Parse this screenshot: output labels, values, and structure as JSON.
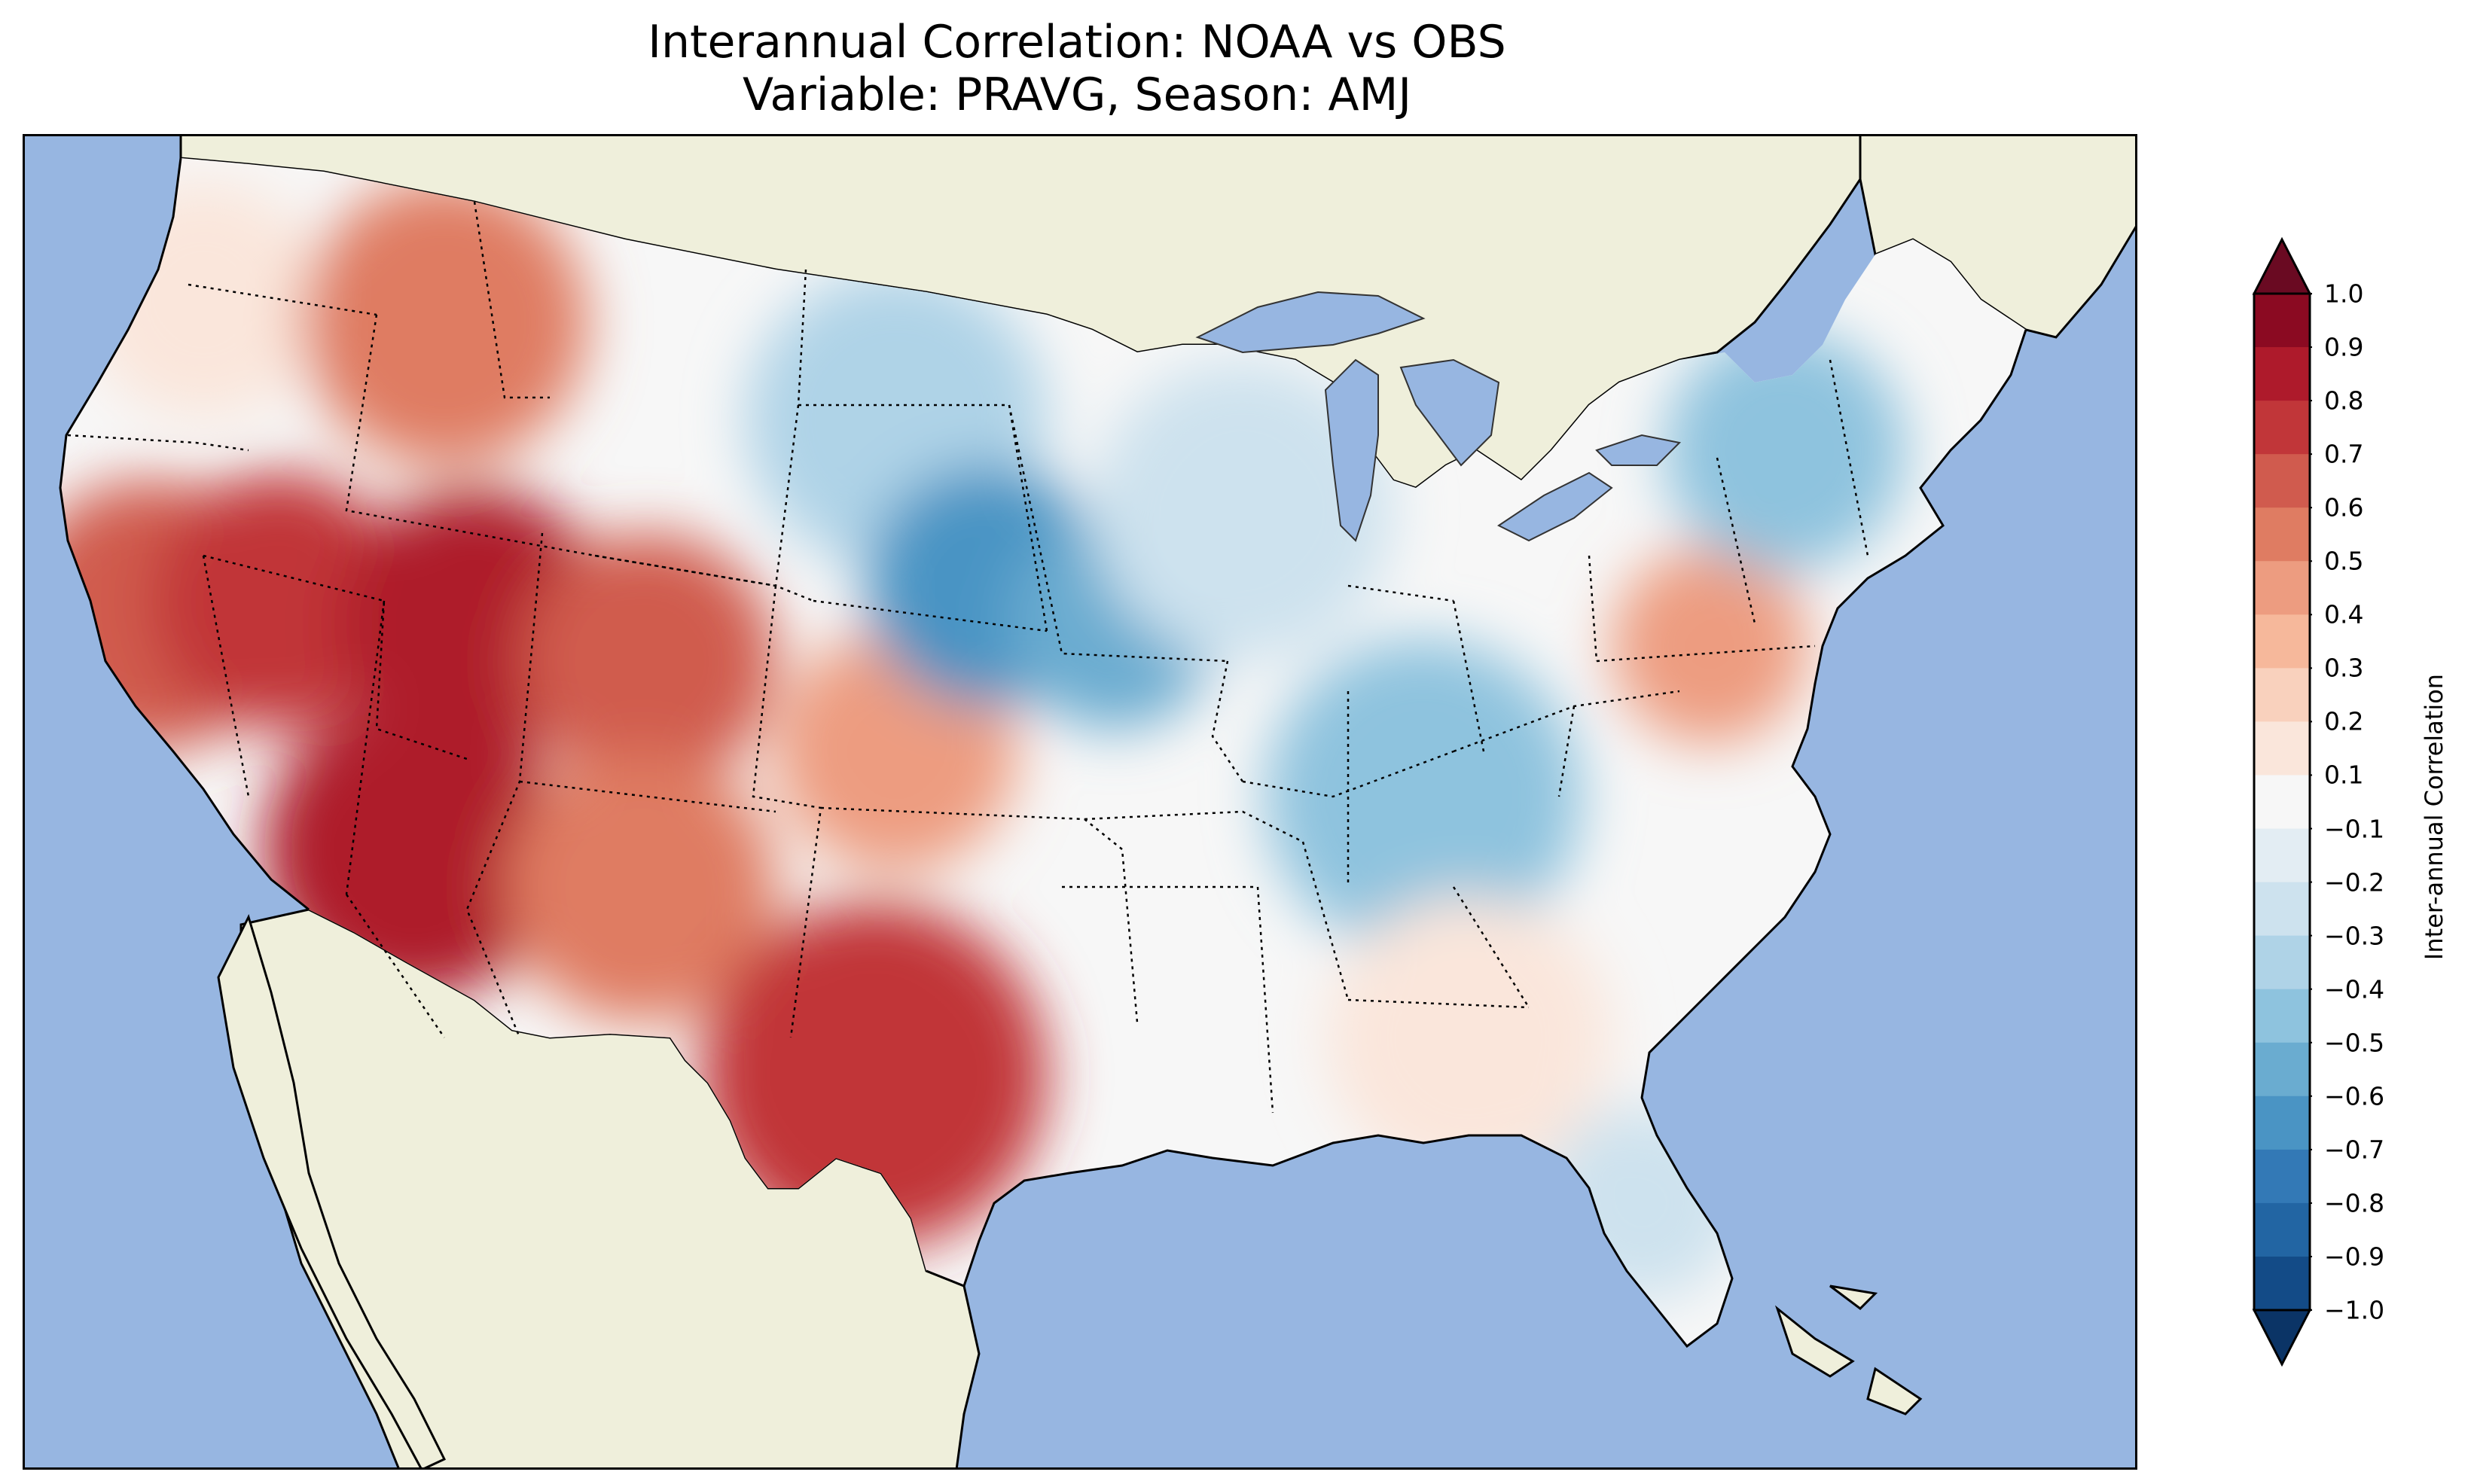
{
  "title": {
    "line1": "Interannual Correlation: NOAA vs OBS",
    "line2": "Variable: PRAVG, Season: AMJ"
  },
  "map": {
    "region": "Contiguous United States",
    "ocean_color": "#97b6e1",
    "land_color": "#efefdb",
    "lake_color": "#97b6e1",
    "pattern": [
      {
        "area": "Pacific Northwest",
        "value": 0.1
      },
      {
        "area": "Northern Rockies",
        "value": 0.5
      },
      {
        "area": "California",
        "value": 0.6
      },
      {
        "area": "Nevada",
        "value": 0.7
      },
      {
        "area": "Utah",
        "value": 0.8
      },
      {
        "area": "Arizona",
        "value": 0.8
      },
      {
        "area": "Colorado",
        "value": 0.6
      },
      {
        "area": "New Mexico",
        "value": 0.5
      },
      {
        "area": "Texas",
        "value": 0.7
      },
      {
        "area": "Kansas",
        "value": 0.4
      },
      {
        "area": "Dakotas",
        "value": -0.3
      },
      {
        "area": "Nebraska",
        "value": -0.6
      },
      {
        "area": "Iowa",
        "value": -0.5
      },
      {
        "area": "Great Lakes",
        "value": -0.2
      },
      {
        "area": "Ohio Valley",
        "value": -0.4
      },
      {
        "area": "Southeast",
        "value": 0.1
      },
      {
        "area": "Florida",
        "value": -0.2
      },
      {
        "area": "Mid-Atlantic",
        "value": 0.4
      },
      {
        "area": "New England",
        "value": -0.4
      }
    ]
  },
  "colorbar": {
    "label": "Inter-annual Correlation",
    "ticks": [
      "1.0",
      "0.9",
      "0.8",
      "0.7",
      "0.6",
      "0.5",
      "0.4",
      "0.3",
      "0.2",
      "0.1",
      "−0.1",
      "−0.2",
      "−0.3",
      "−0.4",
      "−0.5",
      "−0.6",
      "−0.7",
      "−0.8",
      "−0.9",
      "−1.0"
    ],
    "colors_top_to_bottom": [
      "#8b0a22",
      "#ae1a2b",
      "#c13639",
      "#d05b4e",
      "#df7c62",
      "#ed9c80",
      "#f6b89b",
      "#f9d1bd",
      "#fae6db",
      "#f7f7f7",
      "#e3edf3",
      "#cde2ee",
      "#afd3e7",
      "#8ec3de",
      "#6aacd0",
      "#4a94c4",
      "#3379b6",
      "#2265a3",
      "#134b87"
    ],
    "top_arrow_color": "#6a0a22",
    "bottom_arrow_color": "#0b3466"
  }
}
